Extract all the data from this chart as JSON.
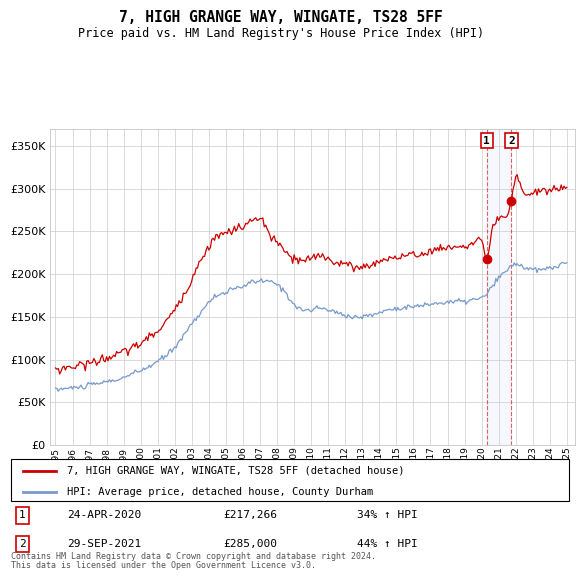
{
  "title": "7, HIGH GRANGE WAY, WINGATE, TS28 5FF",
  "subtitle": "Price paid vs. HM Land Registry's House Price Index (HPI)",
  "ylim": [
    0,
    370000
  ],
  "yticks": [
    0,
    50000,
    100000,
    150000,
    200000,
    250000,
    300000,
    350000
  ],
  "legend_line1": "7, HIGH GRANGE WAY, WINGATE, TS28 5FF (detached house)",
  "legend_line2": "HPI: Average price, detached house, County Durham",
  "annotation1_date": "24-APR-2020",
  "annotation1_price": "£217,266",
  "annotation1_hpi": "34% ↑ HPI",
  "annotation2_date": "29-SEP-2021",
  "annotation2_price": "£285,000",
  "annotation2_hpi": "44% ↑ HPI",
  "footer": "Contains HM Land Registry data © Crown copyright and database right 2024.\nThis data is licensed under the Open Government Licence v3.0.",
  "red_color": "#cc0000",
  "blue_color": "#7799cc",
  "marker1_x": 2020.3,
  "marker2_x": 2021.75,
  "marker1_y": 217266,
  "marker2_y": 285000,
  "xmin": 1994.7,
  "xmax": 2025.5
}
